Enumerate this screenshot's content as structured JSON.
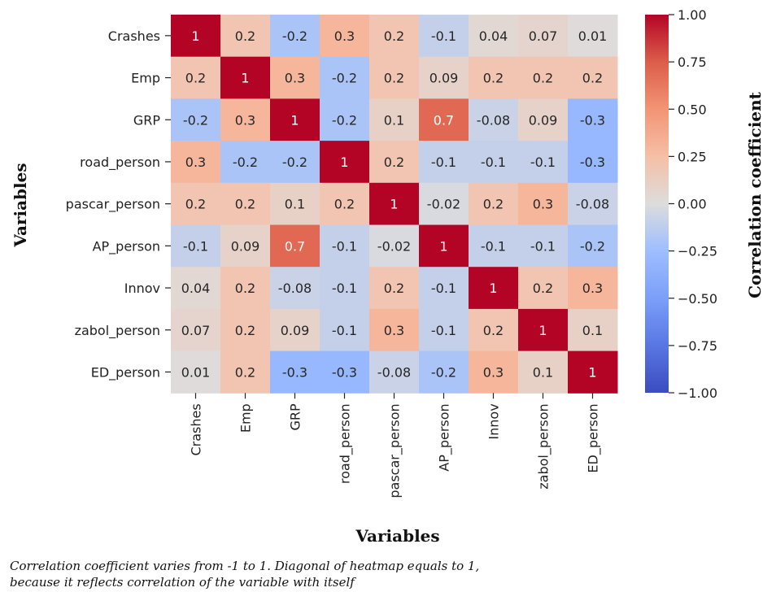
{
  "chart_data": {
    "type": "heatmap",
    "variables": [
      "Crashes",
      "Emp",
      "GRP",
      "road_person",
      "pascar_person",
      "AP_person",
      "Innov",
      "zabol_person",
      "ED_person"
    ],
    "values": [
      [
        1,
        0.2,
        -0.2,
        0.3,
        0.2,
        -0.1,
        0.04,
        0.07,
        0.01
      ],
      [
        0.2,
        1,
        0.3,
        -0.2,
        0.2,
        0.09,
        0.2,
        0.2,
        0.2
      ],
      [
        -0.2,
        0.3,
        1,
        -0.2,
        0.1,
        0.7,
        -0.08,
        0.09,
        -0.3
      ],
      [
        0.3,
        -0.2,
        -0.2,
        1,
        0.2,
        -0.1,
        -0.1,
        -0.1,
        -0.3
      ],
      [
        0.2,
        0.2,
        0.1,
        0.2,
        1,
        -0.02,
        0.2,
        0.3,
        -0.08
      ],
      [
        -0.1,
        0.09,
        0.7,
        -0.1,
        -0.02,
        1,
        -0.1,
        -0.1,
        -0.2
      ],
      [
        0.04,
        0.2,
        -0.08,
        -0.1,
        0.2,
        -0.1,
        1,
        0.2,
        0.3
      ],
      [
        0.07,
        0.2,
        0.09,
        -0.1,
        0.3,
        -0.1,
        0.2,
        1,
        0.1
      ],
      [
        0.01,
        0.2,
        -0.3,
        -0.3,
        -0.08,
        -0.2,
        0.3,
        0.1,
        1
      ]
    ],
    "xlabel": "Variables",
    "ylabel": "Variables",
    "colorbar_label": "Correlation coefficient",
    "colorbar_range": [
      -1.0,
      1.0
    ],
    "colorbar_ticks": [
      "1.00",
      "0.75",
      "0.50",
      "0.25",
      "0.00",
      "−0.25",
      "−0.50",
      "−0.75",
      "−1.00"
    ],
    "colormap": "coolwarm",
    "colors": {
      "low": "#3b4cc0",
      "mid": "#dddddd",
      "high": "#b40426"
    }
  },
  "caption": {
    "line1": "Correlation coefficient varies from -1 to 1. Diagonal of heatmap equals to 1,",
    "line2": "because it reflects correlation of the variable with itself"
  }
}
